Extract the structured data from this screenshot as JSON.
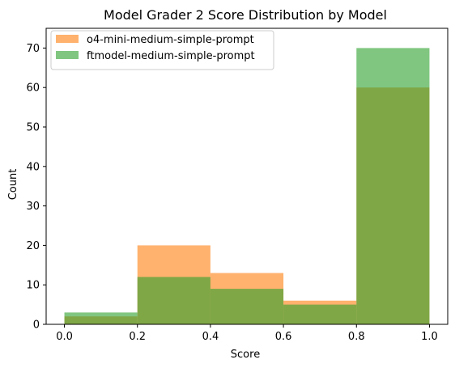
{
  "chart_data": {
    "type": "bar",
    "title": "Model Grader 2 Score Distribution by Model",
    "xlabel": "Score",
    "ylabel": "Count",
    "xlim": [
      -0.05,
      1.05
    ],
    "ylim": [
      0,
      75
    ],
    "xticks": [
      0.0,
      0.2,
      0.4,
      0.6,
      0.8,
      1.0
    ],
    "xtick_labels": [
      "0.0",
      "0.2",
      "0.4",
      "0.6",
      "0.8",
      "1.0"
    ],
    "yticks": [
      0,
      10,
      20,
      30,
      40,
      50,
      60,
      70
    ],
    "ytick_labels": [
      "0",
      "10",
      "20",
      "30",
      "40",
      "50",
      "60",
      "70"
    ],
    "bin_edges": [
      0.0,
      0.2,
      0.4,
      0.6,
      0.8,
      1.0
    ],
    "grid": false,
    "legend_position": "top-left",
    "series": [
      {
        "name": "o4-mini-medium-simple-prompt",
        "color": "#ff7f0e",
        "opacity": 0.6,
        "values": [
          2,
          20,
          13,
          6,
          60
        ]
      },
      {
        "name": "ftmodel-medium-simple-prompt",
        "color": "#2ca02c",
        "opacity": 0.6,
        "values": [
          3,
          12,
          9,
          5,
          70
        ]
      }
    ]
  }
}
